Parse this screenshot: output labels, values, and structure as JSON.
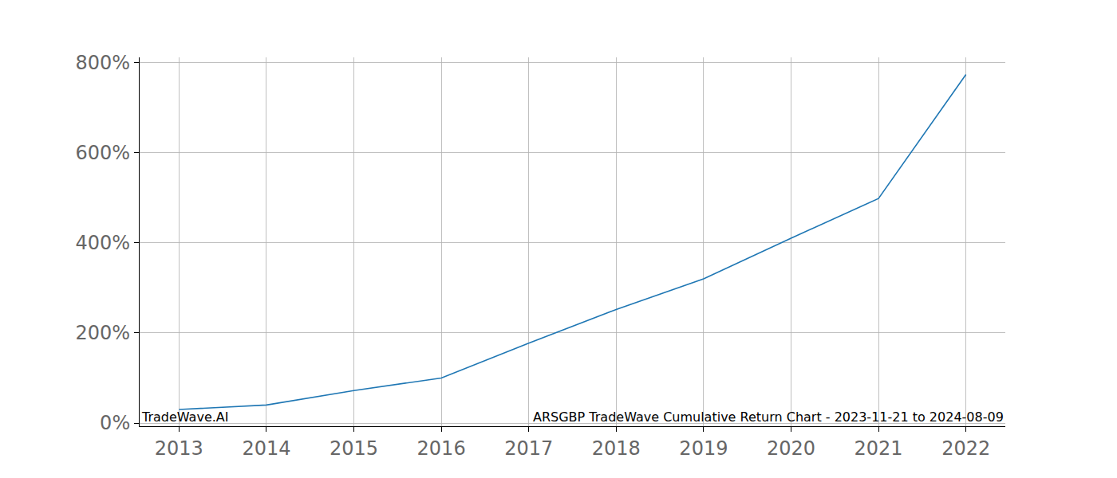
{
  "chart_data": {
    "type": "line",
    "x": [
      2013,
      2014,
      2015,
      2016,
      2017,
      2018,
      2019,
      2020,
      2021,
      2022
    ],
    "values": [
      30,
      40,
      72,
      100,
      177,
      252,
      320,
      410,
      498,
      773
    ],
    "color": "#1f77b4",
    "xlim": [
      2012.55,
      2022.45
    ],
    "xticks": [
      2013,
      2014,
      2015,
      2016,
      2017,
      2018,
      2019,
      2020,
      2021,
      2022
    ],
    "ylim": [
      -7,
      811
    ],
    "yticks": [
      {
        "value": 0,
        "label": "0%"
      },
      {
        "value": 200,
        "label": "200%"
      },
      {
        "value": 400,
        "label": "400%"
      },
      {
        "value": 600,
        "label": "600%"
      },
      {
        "value": 800,
        "label": "800%"
      }
    ],
    "grid": true,
    "annotations": [
      {
        "text": "TradeWave.AI"
      },
      {
        "text": "ARSGBP TradeWave Cumulative Return Chart - 2023-11-21 to 2024-08-09"
      }
    ]
  }
}
